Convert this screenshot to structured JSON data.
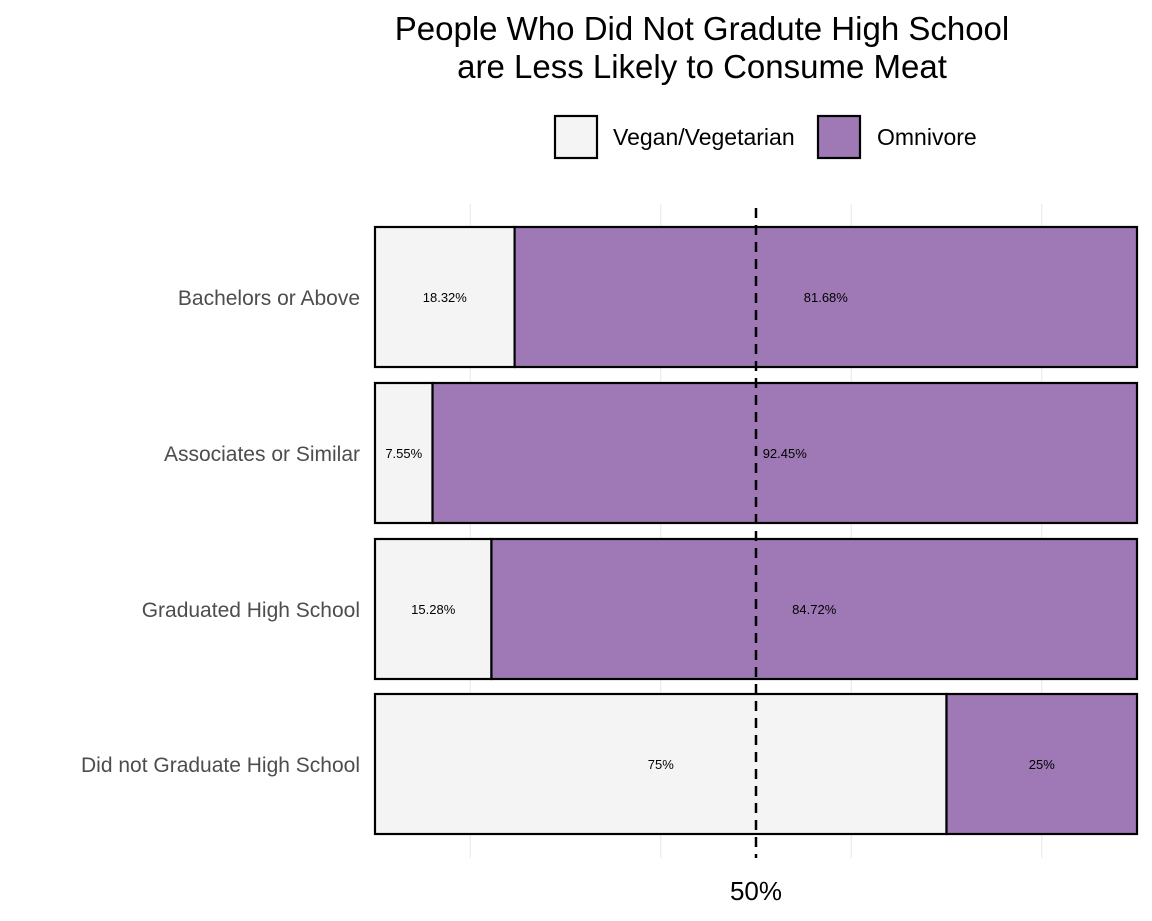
{
  "chart_data": {
    "type": "bar",
    "orientation": "horizontal",
    "stacked": true,
    "normalized": true,
    "title": [
      "People Who Did Not Gradute High School",
      "are Less Likely to Consume Meat"
    ],
    "categories": [
      "Bachelors or Above",
      "Associates or Similar",
      "Graduated High School",
      "Did not Graduate High School"
    ],
    "series": [
      {
        "name": "Vegan/Vegetarian",
        "color": "#f4f4f4",
        "values": [
          18.32,
          7.55,
          15.28,
          75
        ],
        "labels": [
          "18.32%",
          "7.55%",
          "15.28%",
          "75%"
        ]
      },
      {
        "name": "Omnivore",
        "color": "#9e79b5",
        "values": [
          81.68,
          92.45,
          84.72,
          25
        ],
        "labels": [
          "81.68%",
          "92.45%",
          "84.72%",
          "25%"
        ]
      }
    ],
    "xlim": [
      0,
      100
    ],
    "reference_line": {
      "value": 50,
      "label": "50%",
      "style": "dashed"
    },
    "legend_position": "top",
    "grid": true
  }
}
